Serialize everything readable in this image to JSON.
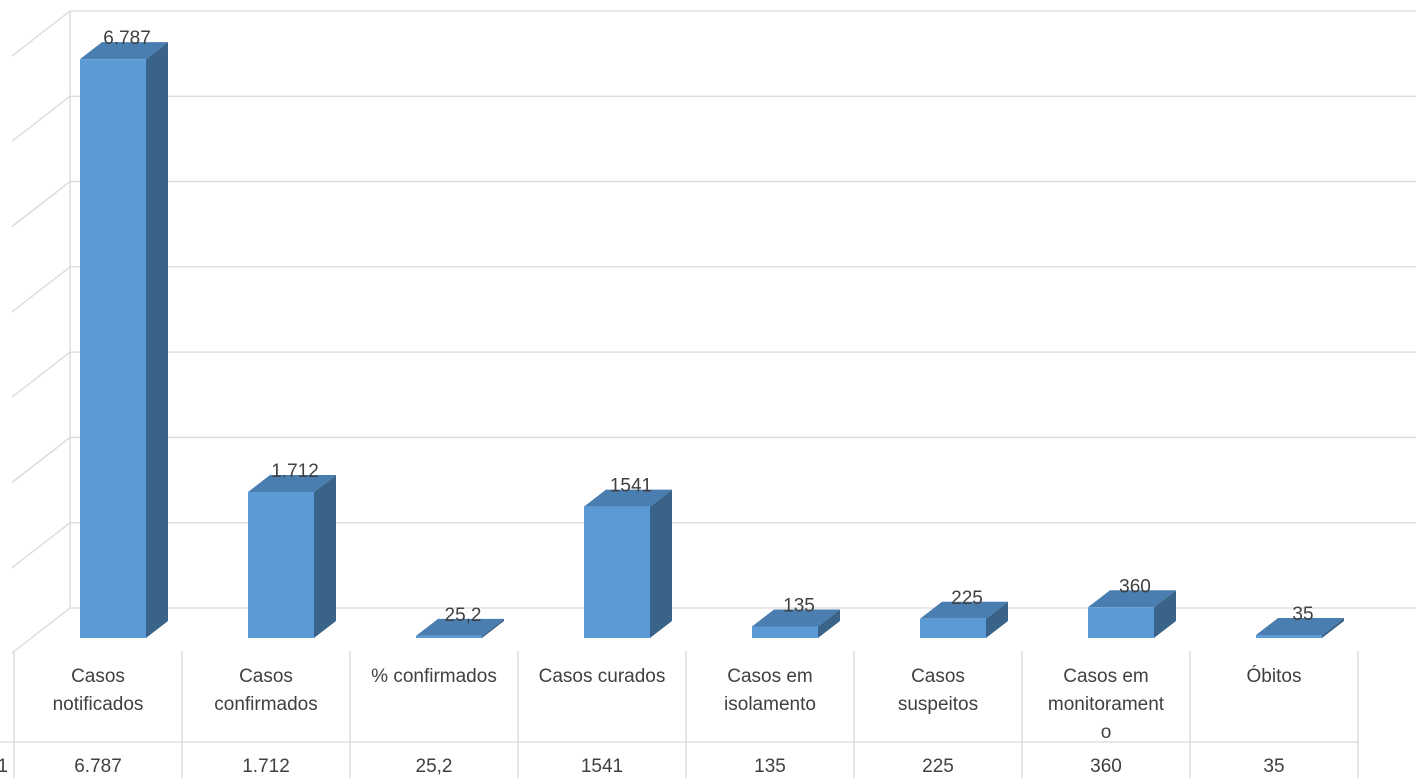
{
  "chart_data": {
    "type": "bar",
    "categories": [
      [
        "Casos",
        "notificados"
      ],
      [
        "Casos",
        "confirmados"
      ],
      [
        "% confirmados"
      ],
      [
        "Casos curados"
      ],
      [
        "Casos em",
        "isolamento"
      ],
      [
        "Casos",
        "suspeitos"
      ],
      [
        "Casos em",
        "monitorament",
        "o"
      ],
      [
        "Óbitos"
      ]
    ],
    "series": [
      {
        "name": "",
        "values": [
          6787,
          1712,
          25.2,
          1541,
          135,
          225,
          360,
          35
        ],
        "labels": [
          "6.787",
          "1.712",
          "25,2",
          "1541",
          "135",
          "225",
          "360",
          "35"
        ]
      }
    ],
    "table_row_marker": "1",
    "ylim": [
      0,
      7000
    ],
    "grid": true,
    "style": "3d-column",
    "colors": {
      "front": "#5B9BD5",
      "top": "#4A7EB0",
      "side": "#3A6389",
      "grid": "#D9D9D9",
      "text": "#404040"
    }
  }
}
